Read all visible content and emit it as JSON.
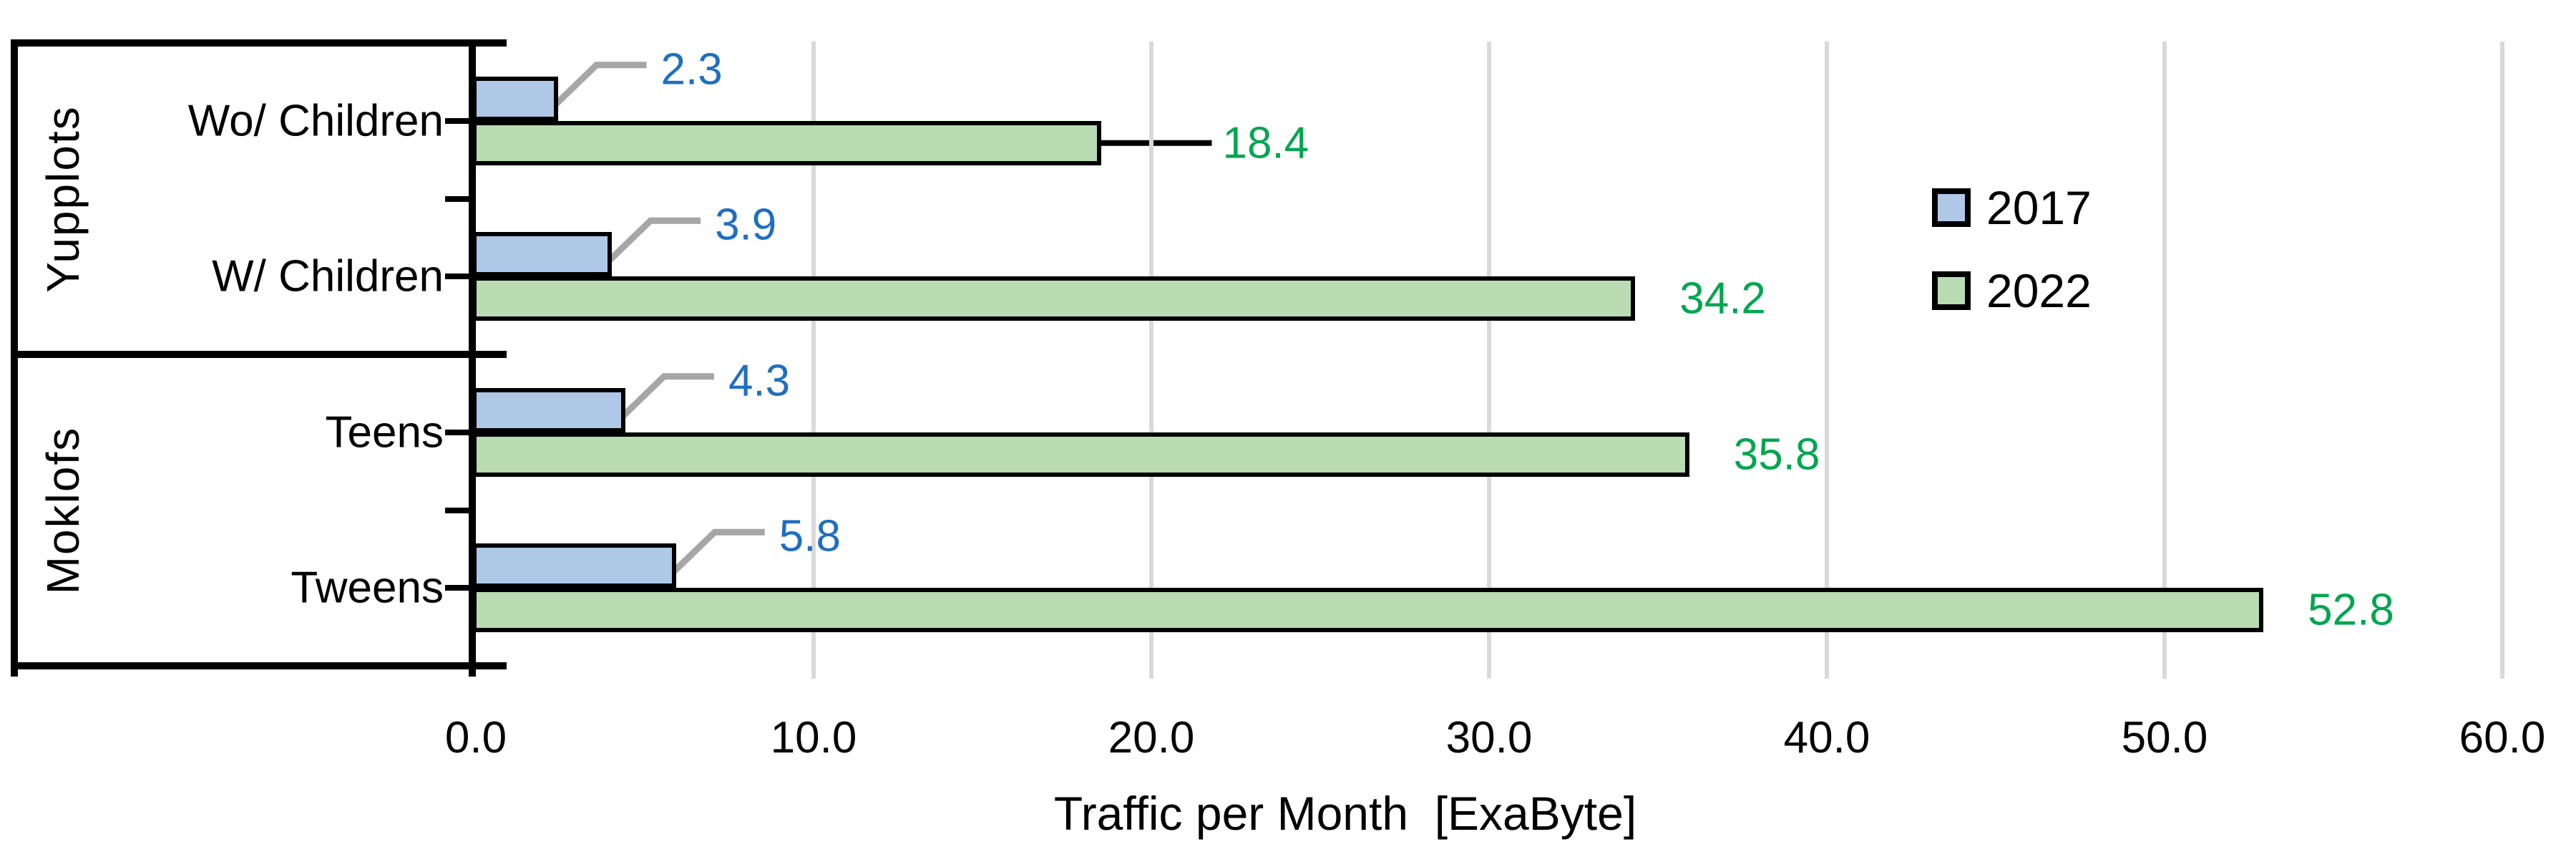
{
  "chart_data": {
    "type": "bar",
    "orientation": "horizontal",
    "title": "",
    "xlabel": "Traffic per Month  [ExaByte]",
    "ylabel": "",
    "xlim": [
      0,
      60
    ],
    "xticks": [
      0,
      10,
      20,
      30,
      40,
      50,
      60
    ],
    "xtick_labels": [
      "0.0",
      "10.0",
      "20.0",
      "30.0",
      "40.0",
      "50.0",
      "60.0"
    ],
    "grid": "vertical-gridlines-on",
    "legend_position": "right-top",
    "groups": [
      {
        "label": "Yupplots",
        "categories": [
          "Wo/ Children",
          "W/ Children"
        ]
      },
      {
        "label": "Moklofs",
        "categories": [
          "Teens",
          "Tweens"
        ]
      }
    ],
    "categories": [
      "Wo/ Children",
      "W/ Children",
      "Teens",
      "Tweens"
    ],
    "series": [
      {
        "name": "2017",
        "color": "#AFC8E7",
        "label_color": "#1F6FC0",
        "values": [
          2.3,
          3.9,
          4.3,
          5.8
        ],
        "labels": [
          "2.3",
          "3.9",
          "4.3",
          "5.8"
        ]
      },
      {
        "name": "2022",
        "color": "#B9DCB3",
        "label_color": "#00A650",
        "values": [
          18.4,
          34.2,
          35.8,
          52.8
        ],
        "labels": [
          "18.4",
          "34.2",
          "35.8",
          "52.8"
        ]
      }
    ],
    "colors": {
      "grid": "#D9D9D9",
      "axis": "#000000",
      "leader_2017": "#A6A6A6",
      "leader_2022": "#000000",
      "background": "#FFFFFF"
    }
  }
}
